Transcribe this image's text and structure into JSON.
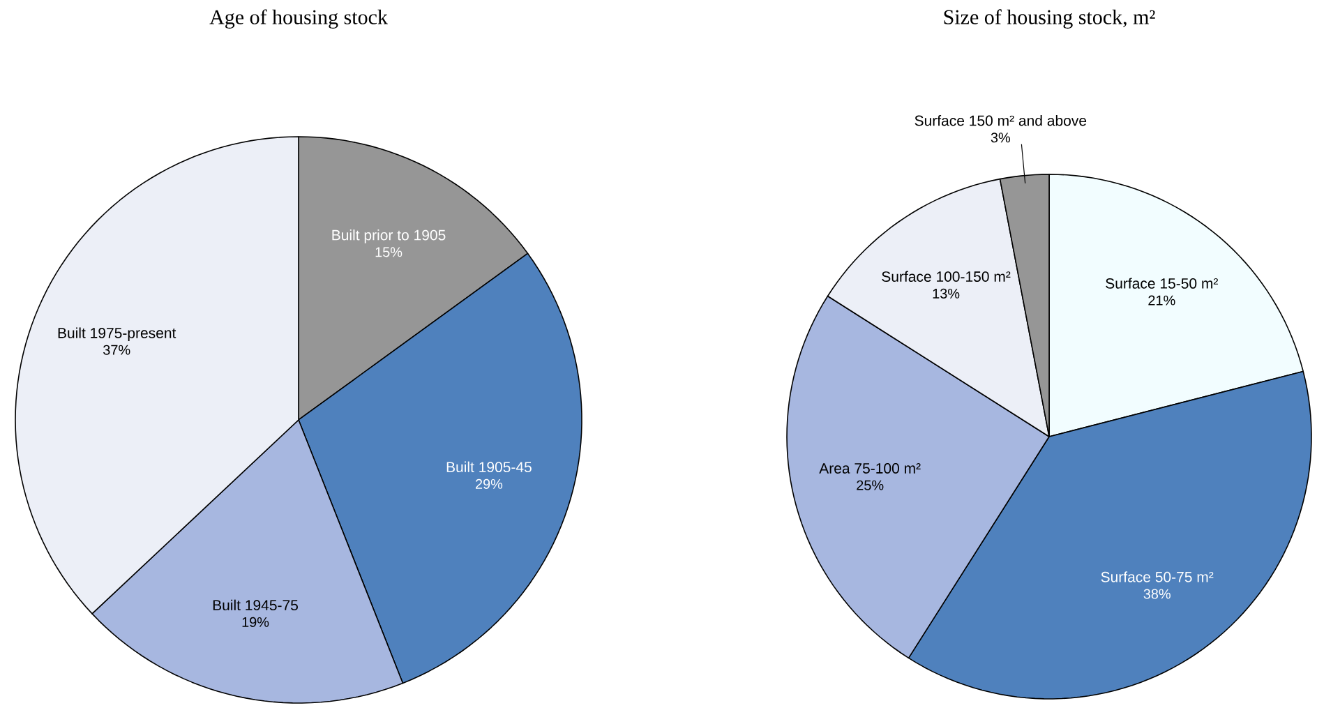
{
  "chart_data": [
    {
      "type": "pie",
      "title": "Age of housing stock",
      "categories": [
        "Built prior to 1905",
        "Built 1905-45",
        "Built 1945-75",
        "Built 1975-present"
      ],
      "values": [
        15,
        29,
        19,
        37
      ],
      "colors": [
        "#969696",
        "#4f81bd",
        "#a7b7e0",
        "#eceff7"
      ],
      "value_labels": [
        "15%",
        "29%",
        "19%",
        "37%"
      ]
    },
    {
      "type": "pie",
      "title": "Size of housing stock, m²",
      "categories": [
        "Surface 15-50 m²",
        "Surface 50-75 m²",
        "Area 75-100 m²",
        "Surface 100-150 m²",
        "Surface 150 m² and above"
      ],
      "values": [
        21,
        38,
        25,
        13,
        3
      ],
      "colors": [
        "#f2fdff",
        "#4f81bd",
        "#a7b7e0",
        "#eceff7",
        "#969696"
      ],
      "value_labels": [
        "21%",
        "38%",
        "25%",
        "13%",
        "3%"
      ]
    }
  ]
}
